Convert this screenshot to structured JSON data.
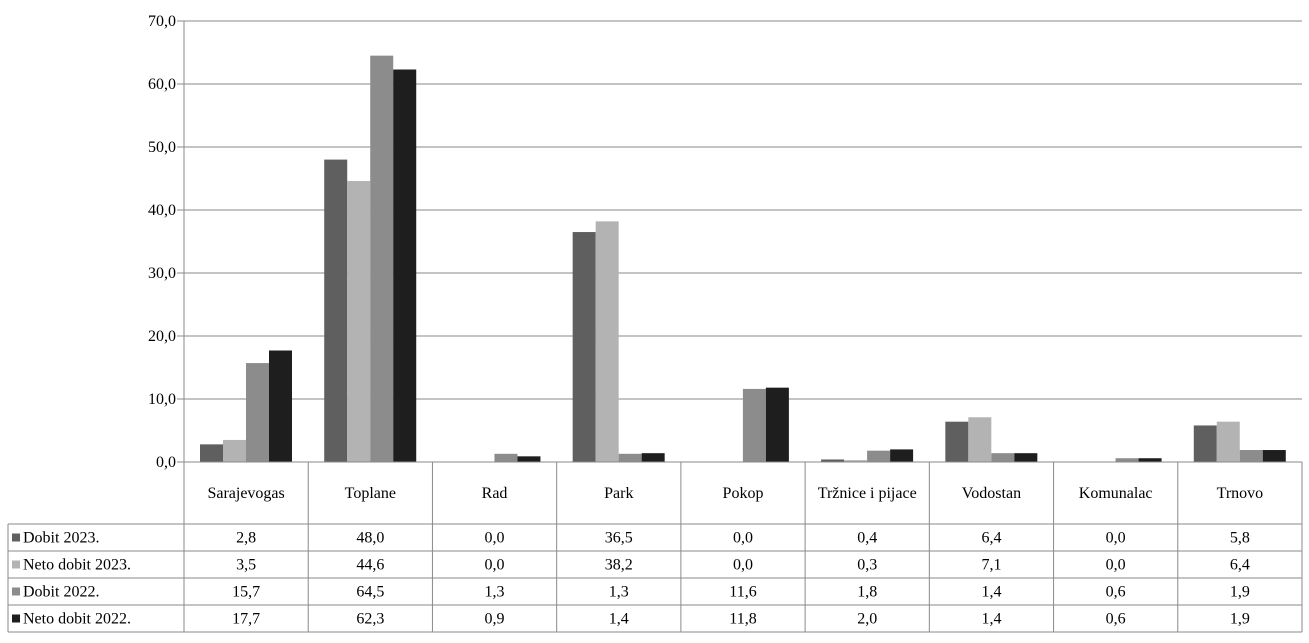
{
  "chart_data": {
    "type": "bar",
    "title": "",
    "xlabel": "",
    "ylabel": "",
    "ylim": [
      0,
      70
    ],
    "yticks": [
      "0,0",
      "10,0",
      "20,0",
      "30,0",
      "40,0",
      "50,0",
      "60,0",
      "70,0"
    ],
    "grid": true,
    "legend_placement": "data-table-left",
    "categories": [
      "Sarajevogas",
      "Toplane",
      "Rad",
      "Park",
      "Pokop",
      "Tržnice i pijace",
      "Vodostan",
      "Komunalac",
      "Trnovo"
    ],
    "series": [
      {
        "name": "Dobit 2023.",
        "color": "#5f5f5f",
        "values": [
          2.8,
          48.0,
          0.0,
          36.5,
          0.0,
          0.4,
          6.4,
          0.0,
          5.8
        ],
        "labels": [
          "2,8",
          "48,0",
          "0,0",
          "36,5",
          "0,0",
          "0,4",
          "6,4",
          "0,0",
          "5,8"
        ]
      },
      {
        "name": "Neto dobit 2023.",
        "color": "#b3b3b3",
        "values": [
          3.5,
          44.6,
          0.0,
          38.2,
          0.0,
          0.3,
          7.1,
          0.0,
          6.4
        ],
        "labels": [
          "3,5",
          "44,6",
          "0,0",
          "38,2",
          "0,0",
          "0,3",
          "7,1",
          "0,0",
          "6,4"
        ]
      },
      {
        "name": "Dobit 2022.",
        "color": "#8c8c8c",
        "values": [
          15.7,
          64.5,
          1.3,
          1.3,
          11.6,
          1.8,
          1.4,
          0.6,
          1.9
        ],
        "labels": [
          "15,7",
          "64,5",
          "1,3",
          "1,3",
          "11,6",
          "1,8",
          "1,4",
          "0,6",
          "1,9"
        ]
      },
      {
        "name": "Neto dobit 2022.",
        "color": "#1e1e1e",
        "values": [
          17.7,
          62.3,
          0.9,
          1.4,
          11.8,
          2.0,
          1.4,
          0.6,
          1.9
        ],
        "labels": [
          "17,7",
          "62,3",
          "0,9",
          "1,4",
          "11,8",
          "2,0",
          "1,4",
          "0,6",
          "1,9"
        ]
      }
    ]
  }
}
